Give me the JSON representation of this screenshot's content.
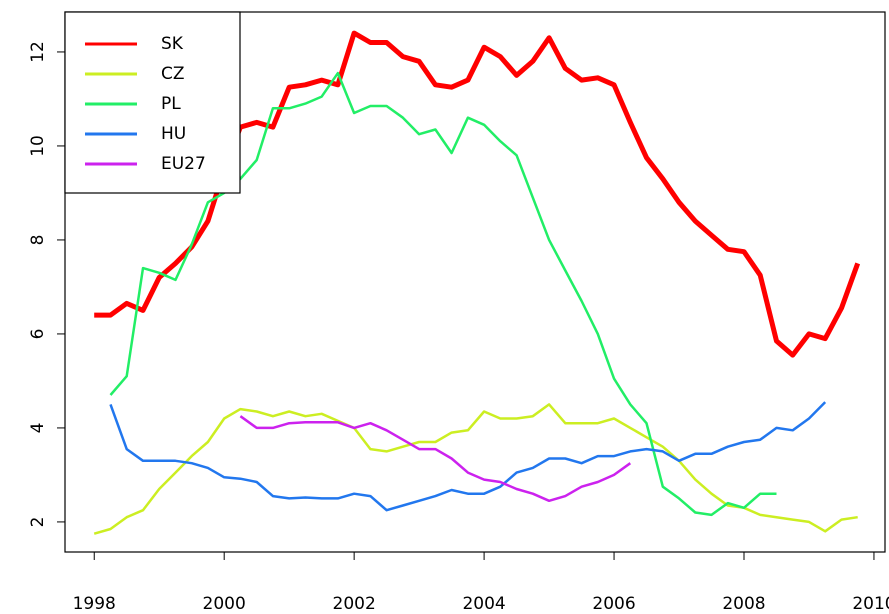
{
  "chart_data": {
    "type": "line",
    "x": [
      1998,
      1998.25,
      1998.5,
      1998.75,
      1999,
      1999.25,
      1999.5,
      1999.75,
      2000,
      2000.25,
      2000.5,
      2000.75,
      2001,
      2001.25,
      2001.5,
      2001.75,
      2002,
      2002.25,
      2002.5,
      2002.75,
      2003,
      2003.25,
      2003.5,
      2003.75,
      2004,
      2004.25,
      2004.5,
      2004.75,
      2005,
      2005.25,
      2005.5,
      2005.75,
      2006,
      2006.25,
      2006.5,
      2006.75,
      2007,
      2007.25,
      2007.5,
      2007.75,
      2008,
      2008.25,
      2008.5,
      2008.75,
      2009,
      2009.25,
      2009.5,
      2009.75
    ],
    "series": [
      {
        "name": "SK",
        "color": "#ff0000",
        "width": 5,
        "values": [
          6.4,
          6.4,
          6.65,
          6.5,
          7.2,
          7.5,
          7.85,
          8.4,
          9.5,
          10.4,
          10.5,
          10.4,
          11.25,
          11.3,
          11.4,
          11.3,
          12.4,
          12.2,
          12.2,
          11.9,
          11.8,
          11.3,
          11.25,
          11.4,
          12.1,
          11.9,
          11.5,
          11.8,
          12.3,
          11.65,
          11.4,
          11.45,
          11.3,
          10.5,
          9.75,
          9.3,
          8.8,
          8.4,
          8.1,
          7.8,
          7.75,
          7.25,
          5.85,
          5.55,
          6.0,
          5.9,
          6.55,
          7.5
        ]
      },
      {
        "name": "CZ",
        "color": "#ccee22",
        "width": 2.5,
        "values": [
          1.75,
          1.85,
          2.1,
          2.25,
          2.7,
          3.05,
          3.4,
          3.7,
          4.2,
          4.4,
          4.35,
          4.25,
          4.35,
          4.25,
          4.3,
          4.15,
          4.0,
          3.55,
          3.5,
          3.6,
          3.7,
          3.7,
          3.9,
          3.95,
          4.35,
          4.2,
          4.2,
          4.25,
          4.5,
          4.1,
          4.1,
          4.1,
          4.2,
          4.0,
          3.8,
          3.6,
          3.3,
          2.9,
          2.6,
          2.35,
          2.3,
          2.15,
          2.1,
          2.05,
          2.0,
          1.8,
          2.05,
          2.1
        ]
      },
      {
        "name": "PL",
        "color": "#22ee66",
        "width": 2.5,
        "values": [
          null,
          4.7,
          5.1,
          7.4,
          7.3,
          7.15,
          7.9,
          8.8,
          9.0,
          9.3,
          9.7,
          10.8,
          10.8,
          10.9,
          11.05,
          11.55,
          10.7,
          10.85,
          10.85,
          10.6,
          10.25,
          10.35,
          9.85,
          10.6,
          10.45,
          10.1,
          9.8,
          8.9,
          8.0,
          7.35,
          6.7,
          6.0,
          5.05,
          4.5,
          4.1,
          2.75,
          2.5,
          2.2,
          2.15,
          2.4,
          2.3,
          2.6,
          2.6,
          null,
          null,
          null,
          null,
          null
        ]
      },
      {
        "name": "HU",
        "color": "#2277ee",
        "width": 2.5,
        "values": [
          null,
          4.5,
          3.55,
          3.3,
          3.3,
          3.3,
          3.25,
          3.15,
          2.95,
          2.92,
          2.85,
          2.55,
          2.5,
          2.52,
          2.5,
          2.5,
          2.6,
          2.55,
          2.25,
          2.35,
          2.45,
          2.55,
          2.68,
          2.6,
          2.6,
          2.75,
          3.05,
          3.15,
          3.35,
          3.35,
          3.25,
          3.4,
          3.4,
          3.5,
          3.55,
          3.5,
          3.3,
          3.45,
          3.45,
          3.6,
          3.7,
          3.75,
          4.0,
          3.95,
          4.2,
          4.55,
          null,
          null
        ]
      },
      {
        "name": "EU27",
        "color": "#cc22ee",
        "width": 2.5,
        "values": [
          null,
          null,
          null,
          null,
          null,
          null,
          null,
          null,
          null,
          4.25,
          4.0,
          4.0,
          4.1,
          4.12,
          4.12,
          4.12,
          4.0,
          4.1,
          3.95,
          3.75,
          3.55,
          3.55,
          3.35,
          3.05,
          2.9,
          2.85,
          2.7,
          2.6,
          2.45,
          2.55,
          2.75,
          2.85,
          3.0,
          3.25,
          null,
          null,
          null,
          null,
          null,
          null,
          null,
          null,
          null,
          null,
          null,
          null,
          null,
          null
        ]
      }
    ],
    "xlim": [
      1997.55,
      2010.17
    ],
    "xticks": [
      1998,
      2000,
      2002,
      2004,
      2006,
      2008,
      2010
    ],
    "ylim": [
      1.36,
      12.85
    ],
    "yticks": [
      2,
      4,
      6,
      8,
      10,
      12
    ],
    "legend": "top-left"
  }
}
